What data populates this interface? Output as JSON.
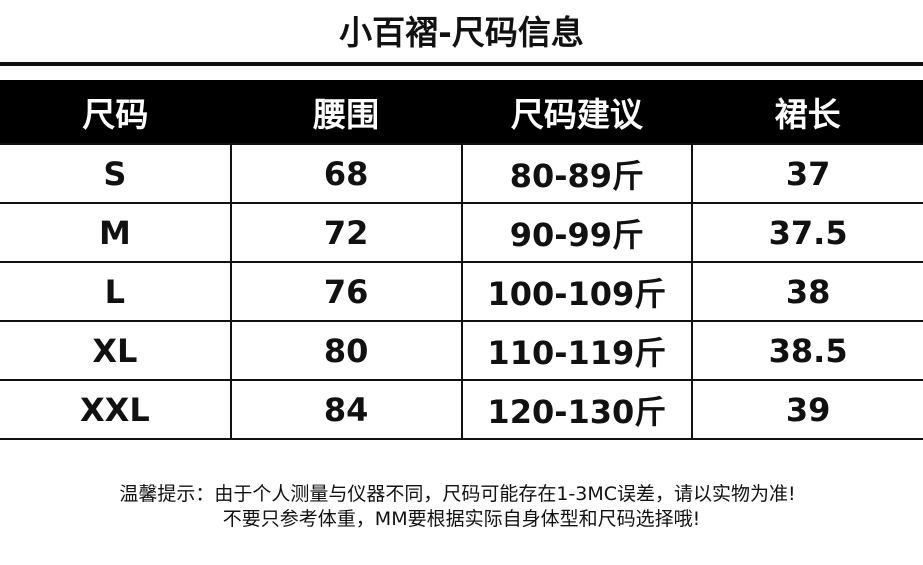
{
  "title": "小百褶-尺码信息",
  "table": {
    "headers": [
      "尺码",
      "腰围",
      "尺码建议",
      "裙长"
    ],
    "rows": [
      [
        "S",
        "68",
        "80-89斤",
        "37"
      ],
      [
        "M",
        "72",
        "90-99斤",
        "37.5"
      ],
      [
        "L",
        "76",
        "100-109斤",
        "38"
      ],
      [
        "XL",
        "80",
        "110-119斤",
        "38.5"
      ],
      [
        "XXL",
        "84",
        "120-130斤",
        "39"
      ]
    ]
  },
  "notes": [
    "温馨提示：由于个人测量与仪器不同，尺码可能存在1-3MC误差，请以实物为准!",
    "不要只参考体重，MM要根据实际自身体型和尺码选择哦!"
  ],
  "colors": {
    "header_bg": "#000000",
    "header_text": "#ffffff",
    "border": "#111111"
  }
}
